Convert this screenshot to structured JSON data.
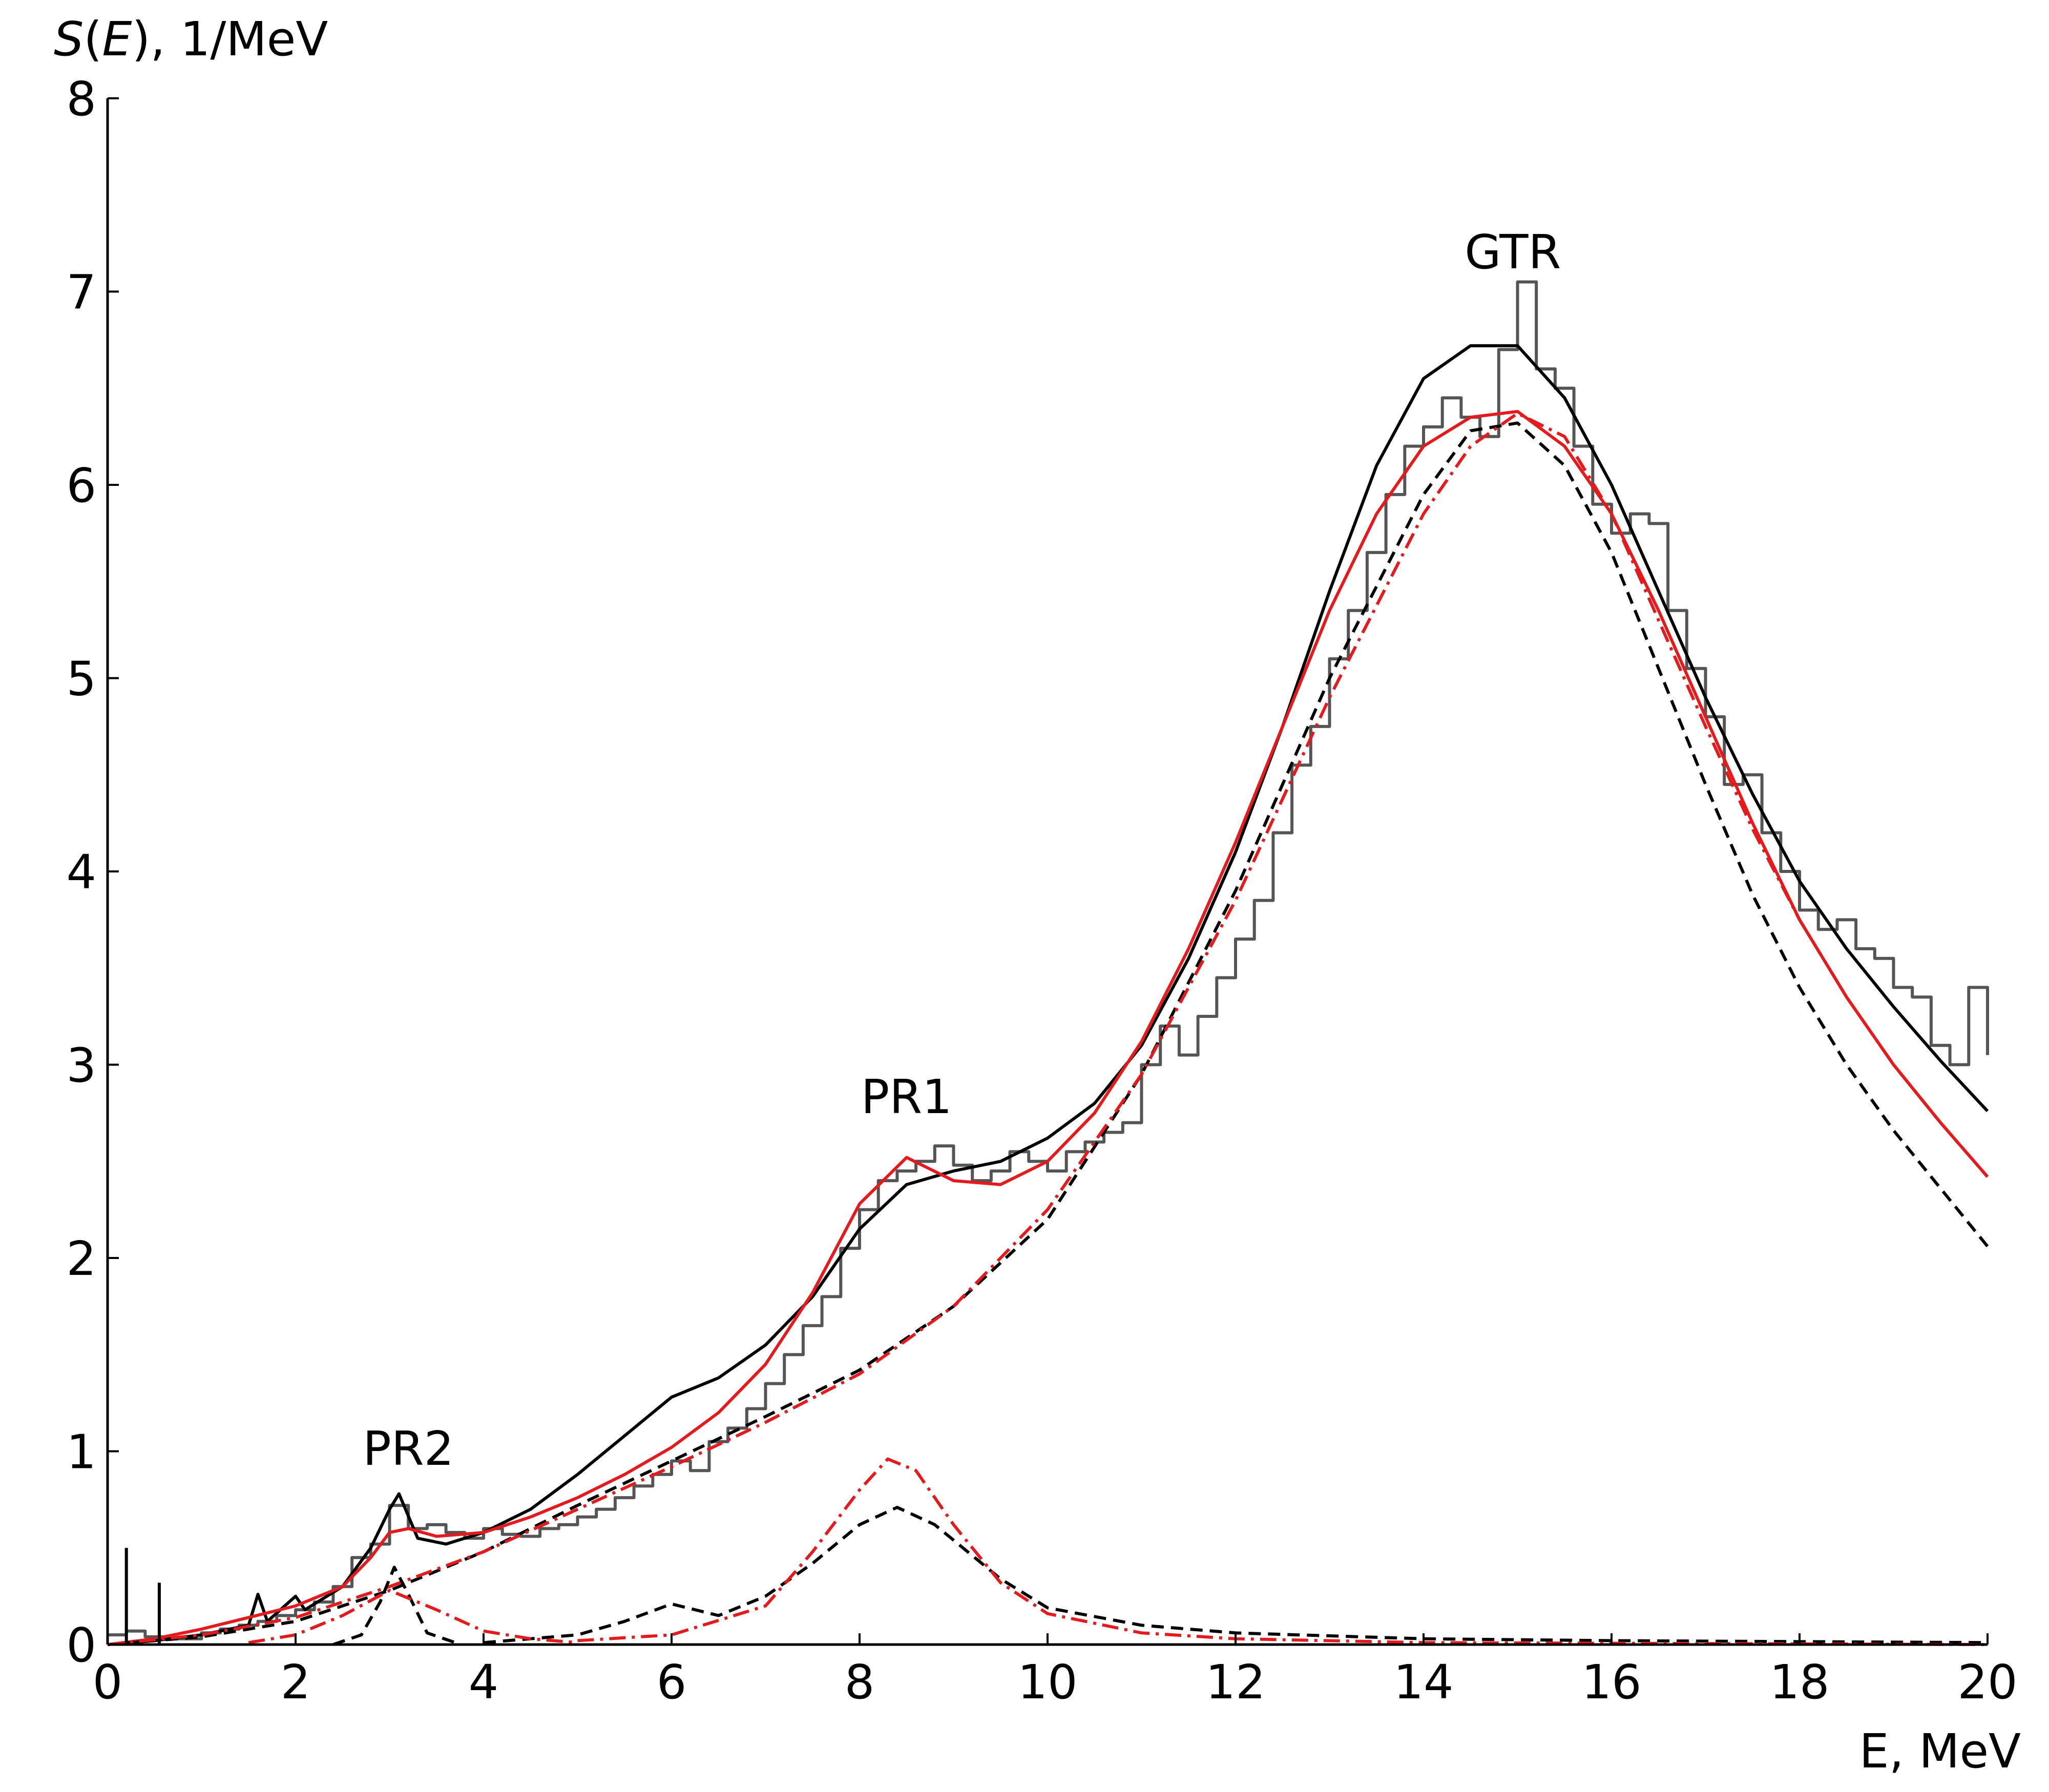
{
  "chart_data": {
    "type": "line",
    "title": "",
    "ylabel": {
      "italic_s": "S",
      "open": "(",
      "italic_e": "E",
      "rest": "), 1/MeV"
    },
    "xlabel": "E, MeV",
    "xlim": [
      0,
      20
    ],
    "ylim": [
      0,
      8
    ],
    "xticks": [
      0,
      2,
      4,
      6,
      8,
      10,
      12,
      14,
      16,
      18,
      20
    ],
    "yticks": [
      0,
      1,
      2,
      3,
      4,
      5,
      6,
      7,
      8
    ],
    "grid": false,
    "annotations": [
      {
        "text": "PR2",
        "x": 3.2,
        "y": 0.93
      },
      {
        "text": "PR1",
        "x": 8.5,
        "y": 2.75
      },
      {
        "text": "GTR",
        "x": 15.0,
        "y": 3.6
      }
    ],
    "colors": {
      "histogram": "#555555",
      "black": "#000000",
      "red": "#e41a1c"
    },
    "series": [
      {
        "style": "histogram",
        "points": [
          [
            0.0,
            0.05
          ],
          [
            0.2,
            0.07
          ],
          [
            0.4,
            0.04
          ],
          [
            0.6,
            0.03
          ],
          [
            0.8,
            0.03
          ],
          [
            1.0,
            0.06
          ],
          [
            1.2,
            0.08
          ],
          [
            1.4,
            0.1
          ],
          [
            1.6,
            0.12
          ],
          [
            1.8,
            0.15
          ],
          [
            2.0,
            0.18
          ],
          [
            2.2,
            0.22
          ],
          [
            2.4,
            0.3
          ],
          [
            2.6,
            0.45
          ],
          [
            2.8,
            0.52
          ],
          [
            3.0,
            0.72
          ],
          [
            3.2,
            0.6
          ],
          [
            3.4,
            0.62
          ],
          [
            3.6,
            0.58
          ],
          [
            3.8,
            0.55
          ],
          [
            4.0,
            0.6
          ],
          [
            4.2,
            0.57
          ],
          [
            4.4,
            0.56
          ],
          [
            4.6,
            0.6
          ],
          [
            4.8,
            0.62
          ],
          [
            5.0,
            0.66
          ],
          [
            5.2,
            0.7
          ],
          [
            5.4,
            0.76
          ],
          [
            5.6,
            0.82
          ],
          [
            5.8,
            0.88
          ],
          [
            6.0,
            0.95
          ],
          [
            6.2,
            0.9
          ],
          [
            6.4,
            1.05
          ],
          [
            6.6,
            1.12
          ],
          [
            6.8,
            1.22
          ],
          [
            7.0,
            1.35
          ],
          [
            7.2,
            1.5
          ],
          [
            7.4,
            1.65
          ],
          [
            7.6,
            1.8
          ],
          [
            7.8,
            2.05
          ],
          [
            8.0,
            2.25
          ],
          [
            8.2,
            2.4
          ],
          [
            8.4,
            2.45
          ],
          [
            8.6,
            2.5
          ],
          [
            8.8,
            2.58
          ],
          [
            9.0,
            2.48
          ],
          [
            9.2,
            2.4
          ],
          [
            9.4,
            2.45
          ],
          [
            9.6,
            2.55
          ],
          [
            9.8,
            2.5
          ],
          [
            10.0,
            2.45
          ],
          [
            10.2,
            2.55
          ],
          [
            10.4,
            2.6
          ],
          [
            10.6,
            2.65
          ],
          [
            10.8,
            2.7
          ],
          [
            11.0,
            3.0
          ],
          [
            11.2,
            3.2
          ],
          [
            11.4,
            3.05
          ],
          [
            11.6,
            3.25
          ],
          [
            11.8,
            3.45
          ],
          [
            12.0,
            3.65
          ],
          [
            12.2,
            3.85
          ],
          [
            12.4,
            4.2
          ],
          [
            12.6,
            4.55
          ],
          [
            12.8,
            4.75
          ],
          [
            13.0,
            5.1
          ],
          [
            13.2,
            5.35
          ],
          [
            13.4,
            5.65
          ],
          [
            13.6,
            5.95
          ],
          [
            13.8,
            6.2
          ],
          [
            14.0,
            6.3
          ],
          [
            14.2,
            6.45
          ],
          [
            14.4,
            6.35
          ],
          [
            14.6,
            6.25
          ],
          [
            14.8,
            6.7
          ],
          [
            15.0,
            7.05
          ],
          [
            15.2,
            6.6
          ],
          [
            15.4,
            6.5
          ],
          [
            15.6,
            6.2
          ],
          [
            15.8,
            5.9
          ],
          [
            16.0,
            5.75
          ],
          [
            16.2,
            5.85
          ],
          [
            16.4,
            5.8
          ],
          [
            16.6,
            5.35
          ],
          [
            16.8,
            5.05
          ],
          [
            17.0,
            4.8
          ],
          [
            17.2,
            4.45
          ],
          [
            17.4,
            4.5
          ],
          [
            17.6,
            4.2
          ],
          [
            17.8,
            4.0
          ],
          [
            18.0,
            3.8
          ],
          [
            18.2,
            3.7
          ],
          [
            18.4,
            3.75
          ],
          [
            18.6,
            3.6
          ],
          [
            18.8,
            3.55
          ],
          [
            19.0,
            3.4
          ],
          [
            19.2,
            3.35
          ],
          [
            19.4,
            3.1
          ],
          [
            19.6,
            3.0
          ],
          [
            19.8,
            3.4
          ],
          [
            20.0,
            3.05
          ]
        ]
      },
      {
        "style": "solid-black",
        "points": [
          [
            0.0,
            0.0
          ],
          [
            0.5,
            0.02
          ],
          [
            1.0,
            0.05
          ],
          [
            1.5,
            0.1
          ],
          [
            1.6,
            0.26
          ],
          [
            1.7,
            0.12
          ],
          [
            2.0,
            0.25
          ],
          [
            2.1,
            0.18
          ],
          [
            2.5,
            0.3
          ],
          [
            2.8,
            0.5
          ],
          [
            3.0,
            0.7
          ],
          [
            3.1,
            0.78
          ],
          [
            3.3,
            0.55
          ],
          [
            3.6,
            0.52
          ],
          [
            4.0,
            0.58
          ],
          [
            4.5,
            0.7
          ],
          [
            5.0,
            0.88
          ],
          [
            5.5,
            1.08
          ],
          [
            6.0,
            1.28
          ],
          [
            6.5,
            1.38
          ],
          [
            7.0,
            1.55
          ],
          [
            7.5,
            1.8
          ],
          [
            8.0,
            2.15
          ],
          [
            8.5,
            2.38
          ],
          [
            9.0,
            2.45
          ],
          [
            9.5,
            2.5
          ],
          [
            10.0,
            2.62
          ],
          [
            10.5,
            2.8
          ],
          [
            11.0,
            3.1
          ],
          [
            11.5,
            3.55
          ],
          [
            12.0,
            4.1
          ],
          [
            12.5,
            4.75
          ],
          [
            13.0,
            5.45
          ],
          [
            13.5,
            6.1
          ],
          [
            14.0,
            6.55
          ],
          [
            14.5,
            6.72
          ],
          [
            15.0,
            6.72
          ],
          [
            15.5,
            6.45
          ],
          [
            16.0,
            6.0
          ],
          [
            16.5,
            5.45
          ],
          [
            17.0,
            4.9
          ],
          [
            17.5,
            4.4
          ],
          [
            18.0,
            3.95
          ],
          [
            18.5,
            3.6
          ],
          [
            19.0,
            3.3
          ],
          [
            19.5,
            3.02
          ],
          [
            20.0,
            2.76
          ]
        ]
      },
      {
        "style": "solid-red",
        "points": [
          [
            0.0,
            0.0
          ],
          [
            0.5,
            0.03
          ],
          [
            1.0,
            0.08
          ],
          [
            1.5,
            0.14
          ],
          [
            2.0,
            0.2
          ],
          [
            2.5,
            0.3
          ],
          [
            2.8,
            0.45
          ],
          [
            3.0,
            0.58
          ],
          [
            3.2,
            0.6
          ],
          [
            3.5,
            0.56
          ],
          [
            4.0,
            0.58
          ],
          [
            4.5,
            0.66
          ],
          [
            5.0,
            0.76
          ],
          [
            5.5,
            0.88
          ],
          [
            6.0,
            1.02
          ],
          [
            6.5,
            1.2
          ],
          [
            7.0,
            1.45
          ],
          [
            7.5,
            1.82
          ],
          [
            8.0,
            2.28
          ],
          [
            8.5,
            2.52
          ],
          [
            9.0,
            2.4
          ],
          [
            9.5,
            2.38
          ],
          [
            10.0,
            2.5
          ],
          [
            10.5,
            2.75
          ],
          [
            11.0,
            3.12
          ],
          [
            11.5,
            3.6
          ],
          [
            12.0,
            4.15
          ],
          [
            12.5,
            4.75
          ],
          [
            13.0,
            5.35
          ],
          [
            13.5,
            5.85
          ],
          [
            14.0,
            6.2
          ],
          [
            14.5,
            6.35
          ],
          [
            15.0,
            6.38
          ],
          [
            15.5,
            6.2
          ],
          [
            16.0,
            5.85
          ],
          [
            16.5,
            5.35
          ],
          [
            17.0,
            4.8
          ],
          [
            17.5,
            4.25
          ],
          [
            18.0,
            3.75
          ],
          [
            18.5,
            3.35
          ],
          [
            19.0,
            3.0
          ],
          [
            19.5,
            2.7
          ],
          [
            20.0,
            2.42
          ]
        ]
      },
      {
        "style": "dashed-black",
        "points": [
          [
            0.0,
            0.0
          ],
          [
            1.0,
            0.04
          ],
          [
            2.0,
            0.12
          ],
          [
            3.0,
            0.28
          ],
          [
            4.0,
            0.48
          ],
          [
            5.0,
            0.72
          ],
          [
            6.0,
            0.95
          ],
          [
            7.0,
            1.18
          ],
          [
            8.0,
            1.42
          ],
          [
            9.0,
            1.75
          ],
          [
            10.0,
            2.2
          ],
          [
            11.0,
            2.95
          ],
          [
            12.0,
            3.9
          ],
          [
            13.0,
            5.0
          ],
          [
            14.0,
            5.95
          ],
          [
            14.5,
            6.28
          ],
          [
            15.0,
            6.32
          ],
          [
            15.5,
            6.1
          ],
          [
            16.0,
            5.65
          ],
          [
            16.5,
            5.05
          ],
          [
            17.0,
            4.45
          ],
          [
            17.5,
            3.88
          ],
          [
            18.0,
            3.4
          ],
          [
            18.5,
            3.0
          ],
          [
            19.0,
            2.66
          ],
          [
            19.5,
            2.36
          ],
          [
            20.0,
            2.06
          ]
        ]
      },
      {
        "style": "dashdot-red",
        "points": [
          [
            0.0,
            0.0
          ],
          [
            1.0,
            0.05
          ],
          [
            2.0,
            0.14
          ],
          [
            3.0,
            0.3
          ],
          [
            4.0,
            0.48
          ],
          [
            5.0,
            0.7
          ],
          [
            6.0,
            0.92
          ],
          [
            7.0,
            1.15
          ],
          [
            8.0,
            1.4
          ],
          [
            9.0,
            1.75
          ],
          [
            10.0,
            2.25
          ],
          [
            11.0,
            2.95
          ],
          [
            12.0,
            3.85
          ],
          [
            13.0,
            4.9
          ],
          [
            14.0,
            5.85
          ],
          [
            14.5,
            6.2
          ],
          [
            15.0,
            6.37
          ],
          [
            15.5,
            6.25
          ],
          [
            16.0,
            5.85
          ],
          [
            16.5,
            5.3
          ],
          [
            17.0,
            4.75
          ],
          [
            17.5,
            4.22
          ],
          [
            18.0,
            3.75
          ],
          [
            18.5,
            3.35
          ],
          [
            19.0,
            3.0
          ],
          [
            19.5,
            2.7
          ],
          [
            20.0,
            2.42
          ]
        ]
      },
      {
        "style": "dashed-black",
        "points": [
          [
            4.0,
            0.01
          ],
          [
            5.0,
            0.05
          ],
          [
            5.5,
            0.12
          ],
          [
            6.0,
            0.21
          ],
          [
            6.5,
            0.15
          ],
          [
            7.0,
            0.25
          ],
          [
            7.5,
            0.42
          ],
          [
            8.0,
            0.62
          ],
          [
            8.4,
            0.71
          ],
          [
            8.8,
            0.62
          ],
          [
            9.5,
            0.34
          ],
          [
            10.0,
            0.19
          ],
          [
            11.0,
            0.1
          ],
          [
            12.0,
            0.06
          ],
          [
            14.0,
            0.03
          ],
          [
            16.0,
            0.02
          ],
          [
            20.0,
            0.01
          ]
        ]
      },
      {
        "style": "dashdot-red",
        "points": [
          [
            5.0,
            0.02
          ],
          [
            6.0,
            0.05
          ],
          [
            7.0,
            0.2
          ],
          [
            7.5,
            0.48
          ],
          [
            8.0,
            0.8
          ],
          [
            8.3,
            0.96
          ],
          [
            8.6,
            0.9
          ],
          [
            9.0,
            0.62
          ],
          [
            9.5,
            0.32
          ],
          [
            10.0,
            0.16
          ],
          [
            11.0,
            0.06
          ],
          [
            12.0,
            0.03
          ],
          [
            14.0,
            0.01
          ],
          [
            20.0,
            0.0
          ]
        ]
      },
      {
        "style": "dashed-black",
        "points": [
          [
            2.4,
            0.0
          ],
          [
            2.7,
            0.05
          ],
          [
            2.9,
            0.22
          ],
          [
            3.05,
            0.4
          ],
          [
            3.2,
            0.26
          ],
          [
            3.4,
            0.06
          ],
          [
            3.7,
            0.01
          ]
        ]
      },
      {
        "style": "dashdot-red",
        "points": [
          [
            1.5,
            0.01
          ],
          [
            2.0,
            0.05
          ],
          [
            2.5,
            0.15
          ],
          [
            3.0,
            0.28
          ],
          [
            3.5,
            0.18
          ],
          [
            4.0,
            0.07
          ],
          [
            4.5,
            0.03
          ],
          [
            5.0,
            0.01
          ]
        ]
      }
    ]
  }
}
